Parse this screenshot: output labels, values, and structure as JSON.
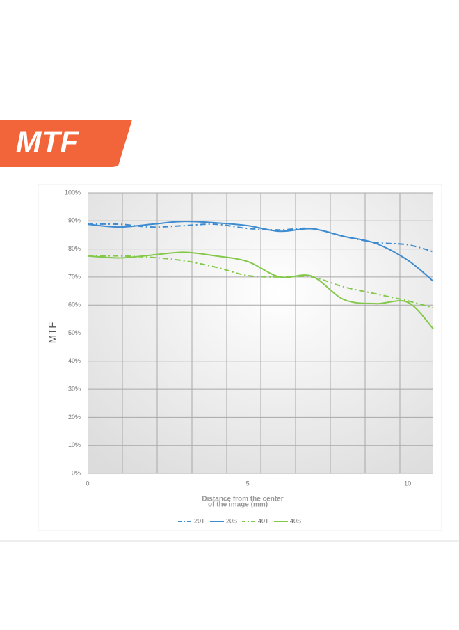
{
  "badge": "MTF",
  "chart_data": {
    "type": "line",
    "ylabel": "MTF",
    "xlabel_lines": [
      "Distance from the center",
      "of the image (mm)"
    ],
    "x": [
      0,
      1,
      2,
      3,
      4,
      5,
      6,
      7,
      8,
      9,
      10,
      10.8
    ],
    "xlim": [
      0,
      10.8
    ],
    "xticks": [
      0,
      5,
      10
    ],
    "ylim": [
      0,
      100
    ],
    "yticks": [
      {
        "value": 0,
        "label": "0%"
      },
      {
        "value": 10,
        "label": "10%"
      },
      {
        "value": 20,
        "label": "20%"
      },
      {
        "value": 30,
        "label": "30%"
      },
      {
        "value": 40,
        "label": "40%"
      },
      {
        "value": 50,
        "label": "50%"
      },
      {
        "value": 60,
        "label": "60%"
      },
      {
        "value": 70,
        "label": "70%"
      },
      {
        "value": 80,
        "label": "80%"
      },
      {
        "value": 90,
        "label": "90%"
      },
      {
        "value": 100,
        "label": "100%"
      }
    ],
    "grid": true,
    "legend": "bottom",
    "series": [
      {
        "name": "20T",
        "color": "#3d8bd0",
        "dash": true,
        "values": [
          88.8,
          88.8,
          87.8,
          88.3,
          88.8,
          87.3,
          86.8,
          87.3,
          84.5,
          82.3,
          81.5,
          79
        ]
      },
      {
        "name": "20S",
        "color": "#3d8bd0",
        "dash": false,
        "values": [
          88.8,
          87.8,
          88.8,
          89.8,
          89.3,
          88.3,
          86.3,
          87.2,
          84.5,
          82,
          76,
          68.5
        ]
      },
      {
        "name": "40T",
        "color": "#84c84a",
        "dash": true,
        "values": [
          77.5,
          77.5,
          77,
          75.8,
          73.5,
          70.5,
          70,
          70,
          66.5,
          64,
          61.5,
          59
        ]
      },
      {
        "name": "40S",
        "color": "#84c84a",
        "dash": false,
        "values": [
          77.5,
          76.8,
          77.8,
          78.8,
          77.5,
          75.5,
          70,
          70.3,
          62,
          60.5,
          61,
          51.5
        ]
      }
    ]
  }
}
